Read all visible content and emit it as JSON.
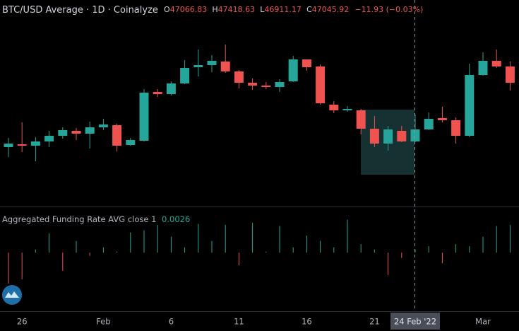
{
  "header": {
    "title": "BTC/USD Average · 1D · Coinalyze",
    "ohlc": [
      {
        "label": "O",
        "value": 47066.83
      },
      {
        "label": "H",
        "value": 47418.63
      },
      {
        "label": "L",
        "value": 46911.17
      },
      {
        "label": "C",
        "value": 47045.92
      }
    ],
    "change": "−11.93 (−0.03%)"
  },
  "chart_data": [
    {
      "type": "candlestick",
      "categories": [
        null,
        "26",
        null,
        null,
        null,
        null,
        null,
        "Feb",
        null,
        null,
        null,
        null,
        "6",
        null,
        null,
        null,
        null,
        "11",
        null,
        null,
        null,
        null,
        "16",
        null,
        null,
        null,
        null,
        "21",
        null,
        null,
        null,
        null,
        null,
        null,
        null,
        "Mar",
        null,
        null
      ],
      "crosshair_label": "24 Feb '22",
      "open": [
        36805,
        37065,
        36935,
        37325,
        37845,
        38300,
        38040,
        38625,
        38820,
        37000,
        37390,
        41875,
        41680,
        42655,
        44150,
        44345,
        44670,
        43760,
        42720,
        42460,
        42330,
        42850,
        44865,
        44215,
        40705,
        40185,
        40185,
        38495,
        37130,
        38300,
        37325,
        38430,
        39470,
        39275,
        37845,
        43435,
        44735,
        44215
      ],
      "high": [
        37650,
        39080,
        37715,
        38300,
        38625,
        38560,
        39145,
        39405,
        38950,
        37650,
        42135,
        42135,
        42850,
        44800,
        45775,
        45255,
        46230,
        43890,
        43110,
        42785,
        43045,
        45190,
        44865,
        44410,
        41030,
        40575,
        40315,
        39665,
        38755,
        38755,
        39795,
        39990,
        40510,
        39535,
        44475,
        45515,
        45775,
        44670
      ],
      "low": [
        35895,
        36350,
        35505,
        36805,
        37585,
        37455,
        36675,
        38365,
        36415,
        36935,
        37325,
        41420,
        41550,
        42590,
        43305,
        43695,
        43630,
        42200,
        42070,
        42135,
        41875,
        42785,
        43825,
        40705,
        39925,
        40055,
        37975,
        36805,
        36480,
        37260,
        37260,
        38365,
        39080,
        37130,
        37715,
        43370,
        44085,
        42005
      ],
      "close": [
        37130,
        36935,
        37325,
        37845,
        38365,
        38040,
        38625,
        38885,
        36935,
        37455,
        41810,
        41680,
        42655,
        44085,
        44345,
        44735,
        43760,
        42720,
        42460,
        42330,
        42785,
        44865,
        44150,
        40835,
        40185,
        40315,
        38495,
        37130,
        38430,
        37325,
        38430,
        39405,
        39275,
        37845,
        43435,
        44735,
        44215,
        42720
      ],
      "up_color": "#26a69a",
      "down_color": "#ef5350",
      "ylim": [
        31345,
        50325
      ]
    },
    {
      "type": "bar",
      "title": "Aggregated Funding Rate AVG close 1",
      "values": [
        -0.0029,
        -0.0025,
        0.0003,
        0.0018,
        -0.0017,
        0.0011,
        -0.0003,
        0.0005,
        0.0001,
        0.0019,
        0.0021,
        0.0026,
        0.0015,
        0.0005,
        0.0027,
        0.0011,
        0.0026,
        -0.0012,
        0.0028,
        0.0001,
        0.0025,
        0.0005,
        0.0016,
        0.0011,
        0.0005,
        0.0031,
        0.0008,
        0.0003,
        -0.0021,
        -0.0005,
        0.0003,
        0.0006,
        -0.001,
        0.0008,
        0.0006,
        0.0015,
        0.0025,
        0.0026
      ],
      "up_color": "#26a69a",
      "down_color": "#ef5350",
      "ylim": [
        -0.0055,
        0.0038
      ]
    }
  ]
}
